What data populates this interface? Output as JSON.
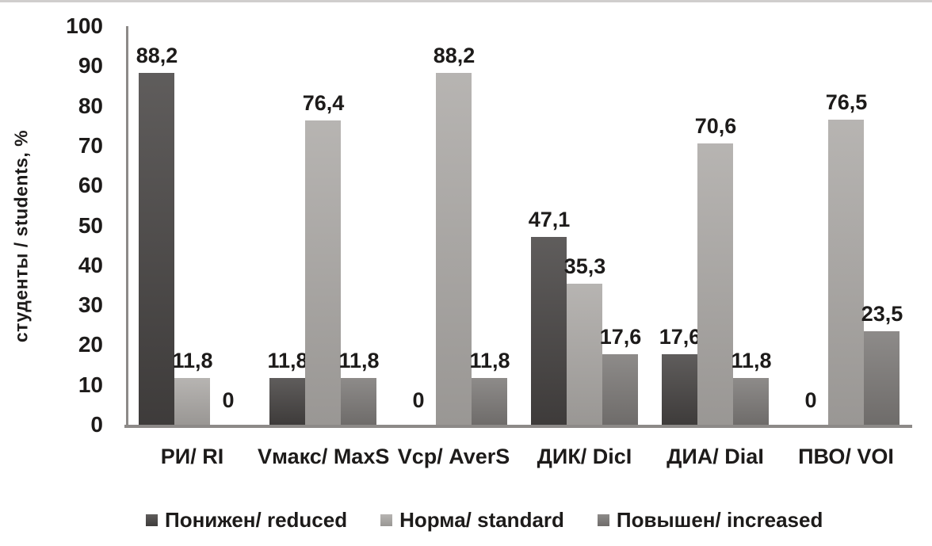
{
  "chart_data": {
    "type": "bar",
    "title": "",
    "ylabel": "студенты / students, %",
    "xlabel": "",
    "ylim": [
      0,
      100
    ],
    "yticks": [
      0,
      10,
      20,
      30,
      40,
      50,
      60,
      70,
      80,
      90,
      100
    ],
    "grid": "off",
    "legend_position": "bottom",
    "categories": [
      "РИ/ RI",
      "Vмакс/ MaxS",
      "Vср/ AverS",
      "ДИК/ DicI",
      "ДИА/ DiaI",
      "ПВО/ VOI"
    ],
    "series": [
      {
        "name": "Понижен/ reduced",
        "color": "#454241",
        "values": [
          88.2,
          11.8,
          0,
          47.1,
          17.6,
          0
        ],
        "labels": [
          "88,2",
          "11,8",
          "0",
          "47,1",
          "17,6",
          "0"
        ]
      },
      {
        "name": "Норма/ standard",
        "color": "#aba8a5",
        "values": [
          11.8,
          76.4,
          88.2,
          35.3,
          70.6,
          76.5
        ],
        "labels": [
          "11,8",
          "76,4",
          "88,2",
          "35,3",
          "70,6",
          "76,5"
        ]
      },
      {
        "name": "Повышен/ increased",
        "color": "#7b7876",
        "values": [
          0,
          11.8,
          11.8,
          17.6,
          11.8,
          23.5
        ],
        "labels": [
          "0",
          "11,8",
          "11,8",
          "17,6",
          "11,8",
          "23,5"
        ]
      }
    ],
    "value_label_decimal_separator": ","
  },
  "colors": {
    "axis": "#8d8a88",
    "text": "#1d1b1a",
    "background": "#ffffff"
  }
}
